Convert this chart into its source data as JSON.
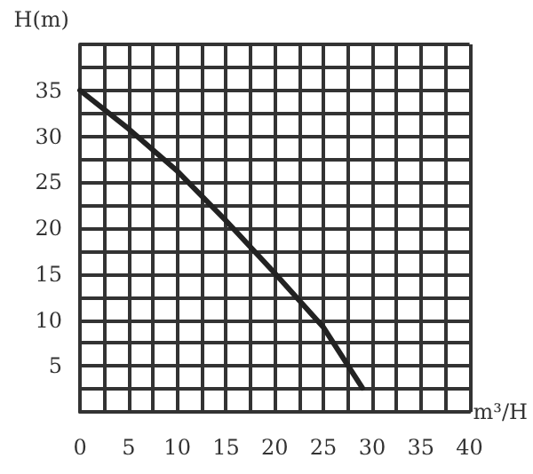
{
  "chart_data": {
    "type": "line",
    "xlabel": "m³/H",
    "ylabel": "H(m)",
    "x": [
      0,
      5,
      10,
      15,
      20,
      25,
      29
    ],
    "series": [
      {
        "color": "#222222",
        "values": [
          35,
          30.8,
          26.2,
          20.8,
          15.1,
          9.2,
          2.6
        ]
      }
    ],
    "xlim": [
      0,
      40
    ],
    "ylim": [
      0,
      40
    ],
    "xticks": [
      0,
      {
        "value": 2.5,
        "label": null
      },
      5,
      {
        "value": 7.5,
        "label": null
      },
      10,
      {
        "value": 12.5,
        "label": null
      },
      15,
      {
        "value": 17.5,
        "label": null
      },
      20,
      {
        "value": 22.5,
        "label": null
      },
      25,
      {
        "value": 27.5,
        "label": null
      },
      30,
      {
        "value": 32.5,
        "label": null
      },
      35,
      {
        "value": 37.5,
        "label": null
      },
      40
    ],
    "yticks": [
      {
        "value": 0,
        "label": null
      },
      {
        "value": 2.5,
        "label": null
      },
      5,
      {
        "value": 7.5,
        "label": null
      },
      10,
      {
        "value": 12.5,
        "label": null
      },
      15,
      {
        "value": 17.5,
        "label": null
      },
      20,
      {
        "value": 22.5,
        "label": null
      },
      25,
      {
        "value": 27.5,
        "label": null
      },
      30,
      {
        "value": 32.5,
        "label": null
      },
      35,
      {
        "value": 37.5,
        "label": null
      },
      {
        "value": 40,
        "label": null
      }
    ],
    "grid": true,
    "marker": "none",
    "line_style": "solid"
  }
}
